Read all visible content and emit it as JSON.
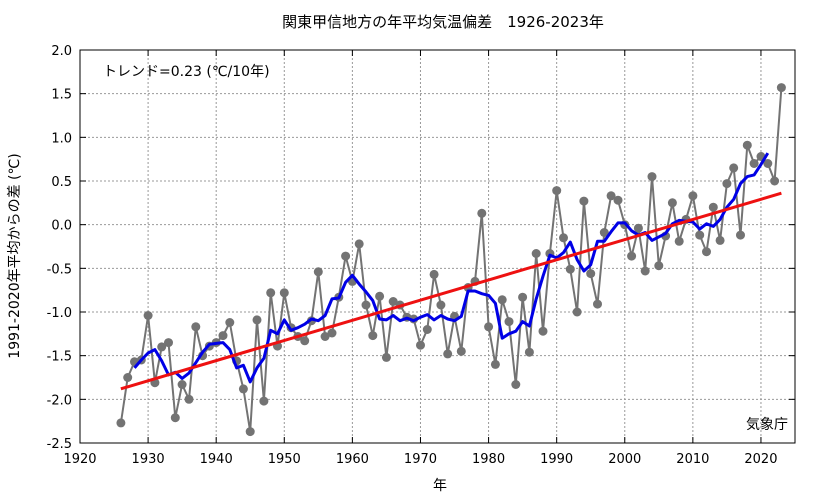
{
  "chart_data": {
    "type": "line",
    "title": "関東甲信地方の年平均気温偏差　1926-2023年",
    "xlabel": "年",
    "ylabel": "1991-2020年平均からの差 (℃)",
    "trend_label": "トレンド=0.23 (℃/10年)",
    "source": "気象庁",
    "xlim": [
      1920,
      2025
    ],
    "ylim": [
      -2.5,
      2.0
    ],
    "x_ticks": [
      1920,
      1930,
      1940,
      1950,
      1960,
      1970,
      1980,
      1990,
      2000,
      2010,
      2020
    ],
    "y_ticks": [
      -2.5,
      -2.0,
      -1.5,
      -1.0,
      -0.5,
      0.0,
      0.5,
      1.0,
      1.5,
      2.0
    ],
    "y_tick_labels": [
      "-2.5",
      "-2.0",
      "-1.5",
      "-1.0",
      "-0.5",
      "0.0",
      "0.5",
      "1.0",
      "1.5",
      "2.0"
    ],
    "grid": true,
    "colors": {
      "annual": "#737373",
      "moving_average": "#0000e6",
      "trend": "#ee1111",
      "grid": "#999999"
    },
    "series": [
      {
        "style": "gray line with markers",
        "x": [
          1926,
          1927,
          1928,
          1929,
          1930,
          1931,
          1932,
          1933,
          1934,
          1935,
          1936,
          1937,
          1938,
          1939,
          1940,
          1941,
          1942,
          1943,
          1944,
          1945,
          1946,
          1947,
          1948,
          1949,
          1950,
          1951,
          1952,
          1953,
          1954,
          1955,
          1956,
          1957,
          1958,
          1959,
          1960,
          1961,
          1962,
          1963,
          1964,
          1965,
          1966,
          1967,
          1968,
          1969,
          1970,
          1971,
          1972,
          1973,
          1974,
          1975,
          1976,
          1977,
          1978,
          1979,
          1980,
          1981,
          1982,
          1983,
          1984,
          1985,
          1986,
          1987,
          1988,
          1989,
          1990,
          1991,
          1992,
          1993,
          1994,
          1995,
          1996,
          1997,
          1998,
          1999,
          2000,
          2001,
          2002,
          2003,
          2004,
          2005,
          2006,
          2007,
          2008,
          2009,
          2010,
          2011,
          2012,
          2013,
          2014,
          2015,
          2016,
          2017,
          2018,
          2019,
          2020,
          2021,
          2022,
          2023
        ],
        "values": [
          -2.27,
          -1.75,
          -1.57,
          -1.55,
          -1.04,
          -1.81,
          -1.4,
          -1.35,
          -2.21,
          -1.83,
          -2.0,
          -1.17,
          -1.5,
          -1.39,
          -1.35,
          -1.27,
          -1.12,
          -1.56,
          -1.88,
          -2.37,
          -1.09,
          -2.02,
          -0.78,
          -1.39,
          -0.78,
          -1.18,
          -1.28,
          -1.33,
          -1.1,
          -0.54,
          -1.28,
          -1.24,
          -0.83,
          -0.36,
          -0.65,
          -0.22,
          -0.92,
          -1.27,
          -0.82,
          -1.52,
          -0.88,
          -0.92,
          -1.06,
          -1.08,
          -1.38,
          -1.2,
          -0.57,
          -0.92,
          -1.48,
          -1.05,
          -1.45,
          -0.72,
          -0.65,
          0.13,
          -1.17,
          -1.6,
          -0.86,
          -1.11,
          -1.83,
          -0.83,
          -1.46,
          -0.33,
          -1.22,
          -0.33,
          0.39,
          -0.15,
          -0.51,
          -1.0,
          0.27,
          -0.56,
          -0.91,
          -0.09,
          0.33,
          0.28,
          0.0,
          -0.36,
          -0.04,
          -0.53,
          0.55,
          -0.47,
          -0.13,
          0.25,
          -0.19,
          0.06,
          0.33,
          -0.12,
          -0.31,
          0.2,
          -0.18,
          0.47,
          0.65,
          -0.12,
          0.91,
          0.7,
          0.78,
          0.7,
          0.5,
          1.57
        ]
      },
      {
        "style": "blue 5-year moving average",
        "x": [
          1928,
          1929,
          1930,
          1931,
          1932,
          1933,
          1934,
          1935,
          1936,
          1937,
          1938,
          1939,
          1940,
          1941,
          1942,
          1943,
          1944,
          1945,
          1946,
          1947,
          1948,
          1949,
          1950,
          1951,
          1952,
          1953,
          1954,
          1955,
          1956,
          1957,
          1958,
          1959,
          1960,
          1961,
          1962,
          1963,
          1964,
          1965,
          1966,
          1967,
          1968,
          1969,
          1970,
          1971,
          1972,
          1973,
          1974,
          1975,
          1976,
          1977,
          1978,
          1979,
          1980,
          1981,
          1982,
          1983,
          1984,
          1985,
          1986,
          1987,
          1988,
          1989,
          1990,
          1991,
          1992,
          1993,
          1994,
          1995,
          1996,
          1997,
          1998,
          1999,
          2000,
          2001,
          2002,
          2003,
          2004,
          2005,
          2006,
          2007,
          2008,
          2009,
          2010,
          2011,
          2012,
          2013,
          2014,
          2015,
          2016,
          2017,
          2018,
          2019,
          2020,
          2021
        ],
        "values": [
          -1.64,
          -1.55,
          -1.47,
          -1.43,
          -1.56,
          -1.72,
          -1.69,
          -1.76,
          -1.7,
          -1.58,
          -1.46,
          -1.37,
          -1.36,
          -1.35,
          -1.43,
          -1.64,
          -1.61,
          -1.8,
          -1.64,
          -1.53,
          -1.21,
          -1.25,
          -1.09,
          -1.21,
          -1.18,
          -1.14,
          -1.08,
          -1.1,
          -1.04,
          -0.85,
          -0.84,
          -0.66,
          -0.58,
          -0.68,
          -0.77,
          -0.87,
          -1.08,
          -1.09,
          -1.04,
          -1.1,
          -1.07,
          -1.1,
          -1.06,
          -1.03,
          -1.09,
          -1.04,
          -1.08,
          -1.1,
          -1.05,
          -0.76,
          -0.76,
          -0.79,
          -0.81,
          -0.9,
          -1.3,
          -1.25,
          -1.22,
          -1.11,
          -1.16,
          -0.85,
          -0.59,
          -0.35,
          -0.38,
          -0.32,
          -0.2,
          -0.4,
          -0.53,
          -0.46,
          -0.19,
          -0.19,
          -0.08,
          0.02,
          0.02,
          -0.07,
          -0.12,
          -0.09,
          -0.18,
          -0.14,
          -0.1,
          0.01,
          0.05,
          0.04,
          0.03,
          -0.05,
          0.01,
          -0.02,
          0.06,
          0.2,
          0.29,
          0.47,
          0.55,
          0.57,
          0.69,
          0.82
        ]
      },
      {
        "style": "red linear trend",
        "x": [
          1926,
          2023
        ],
        "values": [
          -1.88,
          0.36
        ]
      }
    ]
  }
}
